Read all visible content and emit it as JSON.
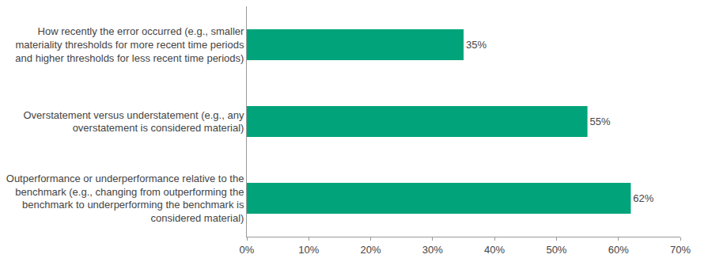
{
  "chart_data": {
    "type": "bar",
    "orientation": "horizontal",
    "categories": [
      "How recently the error occurred (e.g., smaller materiality thresholds for more recent time periods and higher thresholds for less recent time periods)",
      "Overstatement versus understatement (e.g., any overstatement is considered material)",
      "Outperformance or underperformance relative to the benchmark (e.g., changing from outperforming the benchmark to underperforming the benchmark is considered material)"
    ],
    "values": [
      35,
      55,
      62
    ],
    "value_labels": [
      "35%",
      "55%",
      "62%"
    ],
    "color": "#00a37a",
    "xlim": [
      0,
      70
    ],
    "xticks": [
      {
        "value": 0,
        "label": "0%"
      },
      {
        "value": 10,
        "label": "10%"
      },
      {
        "value": 20,
        "label": "20%"
      },
      {
        "value": 30,
        "label": "30%"
      },
      {
        "value": 40,
        "label": "40%"
      },
      {
        "value": 50,
        "label": "50%"
      },
      {
        "value": 60,
        "label": "60%"
      },
      {
        "value": 70,
        "label": "70%"
      }
    ],
    "grid": false,
    "data_labels": true
  }
}
